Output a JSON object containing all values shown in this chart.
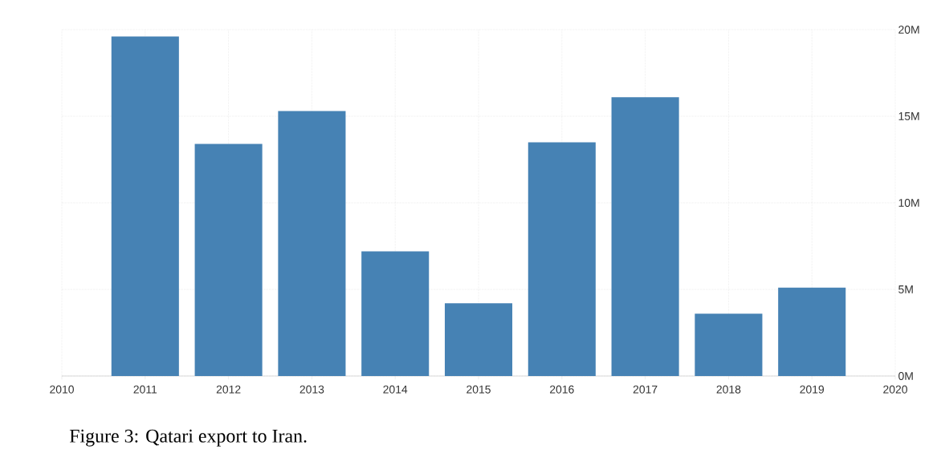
{
  "chart_data": {
    "type": "bar",
    "x": [
      2011,
      2012,
      2013,
      2014,
      2015,
      2016,
      2017,
      2018,
      2019
    ],
    "values": [
      19.6,
      13.4,
      15.3,
      7.2,
      4.2,
      13.5,
      16.1,
      3.6,
      5.1
    ],
    "color": "#4682b4",
    "xlim": [
      2010,
      2020
    ],
    "xticks": [
      2010,
      2011,
      2012,
      2013,
      2014,
      2015,
      2016,
      2017,
      2018,
      2019,
      2020
    ],
    "ylim": [
      0,
      20
    ],
    "yticks": [
      {
        "value": 0,
        "label": "0M"
      },
      {
        "value": 5,
        "label": "5M"
      },
      {
        "value": 10,
        "label": "10M"
      },
      {
        "value": 15,
        "label": "15M"
      },
      {
        "value": 20,
        "label": "20M"
      }
    ],
    "grid": true,
    "annotations": [
      "Figure 3: Qatari export to Iran."
    ]
  }
}
